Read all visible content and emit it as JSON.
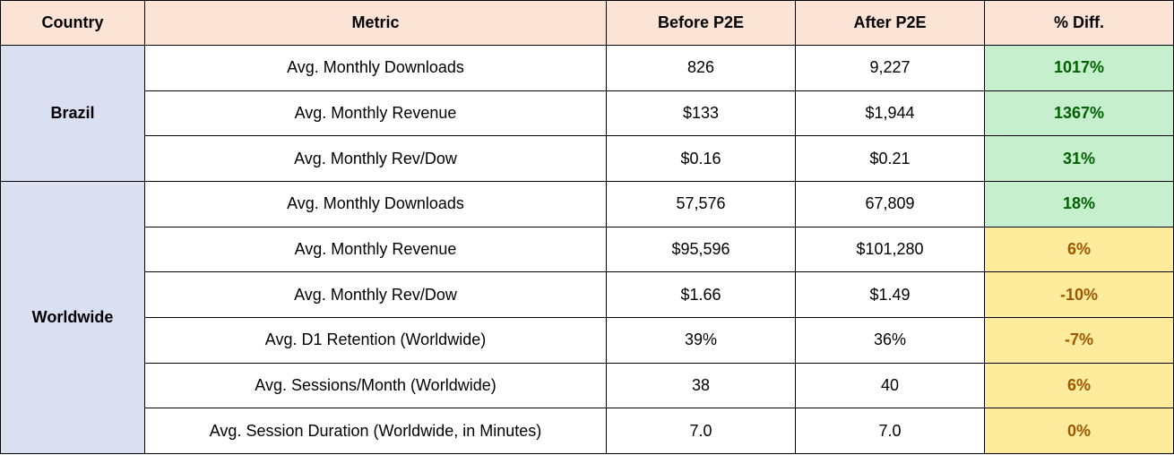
{
  "headers": {
    "country": "Country",
    "metric": "Metric",
    "before": "Before P2E",
    "after": "After P2E",
    "diff": "% Diff."
  },
  "colors": {
    "header_bg": "#fbe3d6",
    "country_bg": "#dae0f2",
    "positive_bg": "#c6efce",
    "positive_text": "#006100",
    "neutral_bg": "#ffeb9c",
    "neutral_text": "#9c5700"
  },
  "groups": [
    {
      "country": "Brazil",
      "rows": [
        {
          "metric": "Avg. Monthly Downloads",
          "before": "826",
          "after": "9,227",
          "diff": "1017%",
          "status": "good"
        },
        {
          "metric": "Avg. Monthly Revenue",
          "before": "$133",
          "after": "$1,944",
          "diff": "1367%",
          "status": "good"
        },
        {
          "metric": "Avg. Monthly Rev/Dow",
          "before": "$0.16",
          "after": "$0.21",
          "diff": "31%",
          "status": "good"
        }
      ]
    },
    {
      "country": "Worldwide",
      "rows": [
        {
          "metric": "Avg. Monthly Downloads",
          "before": "57,576",
          "after": "67,809",
          "diff": "18%",
          "status": "good"
        },
        {
          "metric": "Avg. Monthly Revenue",
          "before": "$95,596",
          "after": "$101,280",
          "diff": "6%",
          "status": "neutral"
        },
        {
          "metric": "Avg. Monthly Rev/Dow",
          "before": "$1.66",
          "after": "$1.49",
          "diff": "-10%",
          "status": "neutral"
        },
        {
          "metric": "Avg. D1 Retention (Worldwide)",
          "before": "39%",
          "after": "36%",
          "diff": "-7%",
          "status": "neutral"
        },
        {
          "metric": "Avg. Sessions/Month (Worldwide)",
          "before": "38",
          "after": "40",
          "diff": "6%",
          "status": "neutral"
        },
        {
          "metric": "Avg. Session Duration (Worldwide, in Minutes)",
          "before": "7.0",
          "after": "7.0",
          "diff": "0%",
          "status": "neutral"
        }
      ]
    }
  ]
}
